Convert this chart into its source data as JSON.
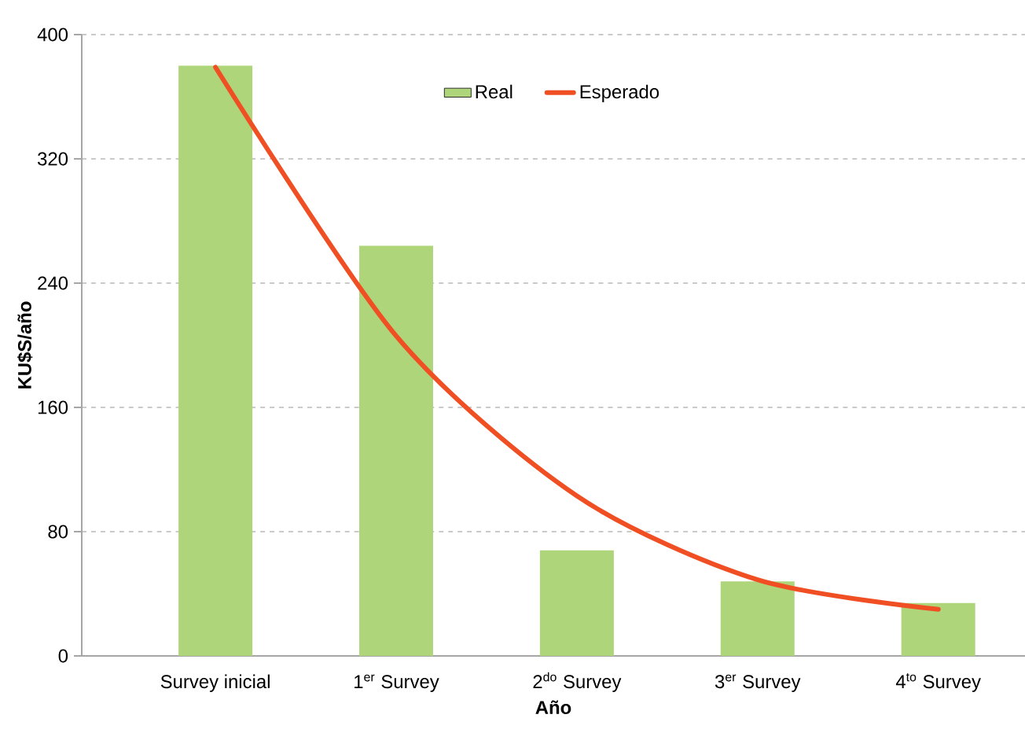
{
  "chart_data": {
    "type": "bar",
    "xlabel": "Año",
    "ylabel": "KU$S/año",
    "categories": [
      "Survey inicial",
      "1$^{er}$ Survey",
      "2$^{do}$ Survey",
      "3$^{er}$ Survey",
      "4$^{to}$ Survey"
    ],
    "series": [
      {
        "name": "Real",
        "color": "#aed57a",
        "values": [
          380,
          264,
          68,
          48,
          34
        ]
      },
      {
        "name": "Esperado",
        "type": "line",
        "color": "#f04e23",
        "values": [
          379,
          206,
          103,
          49,
          30
        ]
      }
    ],
    "ylim": [
      0,
      400
    ],
    "yticks": [
      0,
      80,
      160,
      240,
      320,
      400
    ],
    "grid": "y",
    "legend": "top",
    "marker": "none",
    "line_style": "solid"
  }
}
